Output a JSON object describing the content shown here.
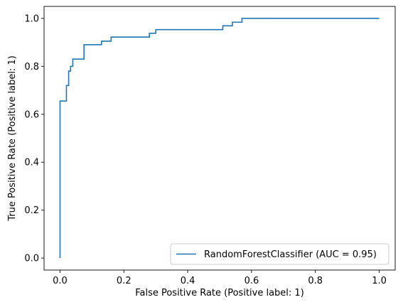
{
  "chart_data": {
    "type": "line",
    "title": "",
    "xlabel": "False Positive Rate (Positive label: 1)",
    "ylabel": "True Positive Rate (Positive label: 1)",
    "xlim": [
      -0.05,
      1.05
    ],
    "ylim": [
      -0.05,
      1.05
    ],
    "xticks": [
      0.0,
      0.2,
      0.4,
      0.6,
      0.8,
      1.0
    ],
    "yticks": [
      0.0,
      0.2,
      0.4,
      0.6,
      0.8,
      1.0
    ],
    "xtick_labels": [
      "0.0",
      "0.2",
      "0.4",
      "0.6",
      "0.8",
      "1.0"
    ],
    "ytick_labels": [
      "0.0",
      "0.2",
      "0.4",
      "0.6",
      "0.8",
      "1.0"
    ],
    "grid": false,
    "legend_position": "lower-right",
    "series": [
      {
        "name": "RandomForestClassifier (AUC = 0.95)",
        "color": "#1f77b4",
        "x": [
          0.0,
          0.0,
          0.0,
          0.02,
          0.02,
          0.027,
          0.027,
          0.033,
          0.033,
          0.04,
          0.04,
          0.052,
          0.052,
          0.075,
          0.075,
          0.13,
          0.13,
          0.16,
          0.16,
          0.28,
          0.28,
          0.3,
          0.3,
          0.51,
          0.51,
          0.54,
          0.54,
          0.555,
          0.555,
          0.57,
          0.57,
          1.0
        ],
        "y": [
          0.0,
          0.655,
          0.655,
          0.655,
          0.72,
          0.72,
          0.78,
          0.78,
          0.8,
          0.8,
          0.83,
          0.83,
          0.83,
          0.83,
          0.89,
          0.89,
          0.905,
          0.905,
          0.922,
          0.922,
          0.938,
          0.938,
          0.953,
          0.953,
          0.969,
          0.969,
          0.984,
          0.984,
          0.984,
          0.984,
          1.0,
          1.0
        ]
      }
    ]
  }
}
